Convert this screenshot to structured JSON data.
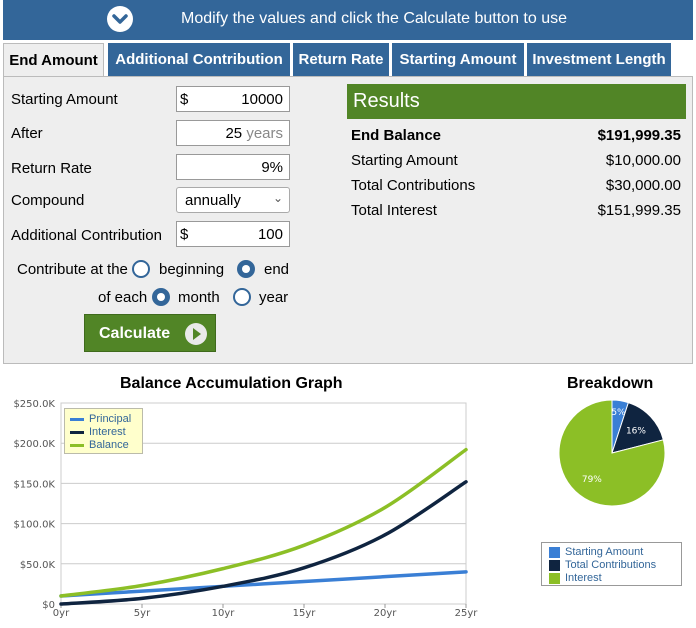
{
  "banner": {
    "text": "Modify the values and click the Calculate button to use",
    "icon": "chevron-down-circle-icon"
  },
  "tabs": [
    {
      "label": "End Amount",
      "active": true
    },
    {
      "label": "Additional Contribution",
      "active": false
    },
    {
      "label": "Return Rate",
      "active": false
    },
    {
      "label": "Starting Amount",
      "active": false
    },
    {
      "label": "Investment Length",
      "active": false
    }
  ],
  "form": {
    "starting_amount": {
      "label": "Starting Amount",
      "prefix": "$",
      "value": "10000"
    },
    "after": {
      "label": "After",
      "value": "25",
      "suffix": "years"
    },
    "return_rate": {
      "label": "Return Rate",
      "value": "9",
      "suffix": "%"
    },
    "compound": {
      "label": "Compound",
      "value": "annually"
    },
    "additional_contribution": {
      "label": "Additional Contribution",
      "prefix": "$",
      "value": "100"
    },
    "contribute_at": {
      "label": "Contribute at the",
      "options": [
        "beginning",
        "end"
      ],
      "selected": "end"
    },
    "of_each": {
      "label": "of each",
      "options": [
        "month",
        "year"
      ],
      "selected": "month"
    },
    "calculate_label": "Calculate"
  },
  "results": {
    "title": "Results",
    "rows": [
      {
        "label": "End Balance",
        "value": "$191,999.35",
        "bold": true
      },
      {
        "label": "Starting Amount",
        "value": "$10,000.00",
        "bold": false
      },
      {
        "label": "Total Contributions",
        "value": "$30,000.00",
        "bold": false
      },
      {
        "label": "Total Interest",
        "value": "$151,999.35",
        "bold": false
      }
    ]
  },
  "colors": {
    "banner": "#336699",
    "green": "#518526",
    "principal": "#3a7fd5",
    "interest": "#0f2440",
    "balance": "#8cbf26"
  },
  "chart_data": [
    {
      "type": "line",
      "title": "Balance Accumulation Graph",
      "xlabel": "",
      "ylabel": "",
      "x": [
        0,
        5,
        10,
        15,
        20,
        25
      ],
      "x_tick_labels": [
        "0yr",
        "5yr",
        "10yr",
        "15yr",
        "20yr",
        "25yr"
      ],
      "y_tick_labels": [
        "$0",
        "$50.0K",
        "$100.0K",
        "$150.0K",
        "$200.0K",
        "$250.0K"
      ],
      "ylim": [
        0,
        250000
      ],
      "xlim": [
        0,
        25
      ],
      "grid": true,
      "legend": "top-left",
      "series": [
        {
          "name": "Principal",
          "color": "#3a7fd5",
          "values": [
            10000,
            16000,
            22000,
            28000,
            34000,
            40000
          ]
        },
        {
          "name": "Interest",
          "color": "#0f2440",
          "values": [
            0,
            7000,
            22000,
            45000,
            86000,
            152000
          ]
        },
        {
          "name": "Balance",
          "color": "#8cbf26",
          "values": [
            10000,
            23000,
            44000,
            73000,
            120000,
            192000
          ]
        }
      ]
    },
    {
      "type": "pie",
      "title": "Breakdown",
      "legend": "bottom",
      "slices": [
        {
          "name": "Starting Amount",
          "value": 5,
          "label": "5%",
          "color": "#3a7fd5"
        },
        {
          "name": "Total Contributions",
          "value": 16,
          "label": "16%",
          "color": "#0f2440"
        },
        {
          "name": "Interest",
          "value": 79,
          "label": "79%",
          "color": "#8cbf26"
        }
      ]
    }
  ]
}
